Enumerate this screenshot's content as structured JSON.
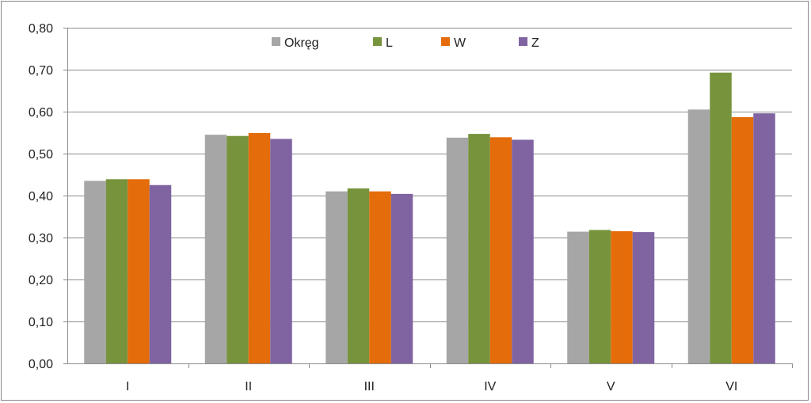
{
  "chart_data": {
    "type": "bar",
    "title": "",
    "xlabel": "",
    "ylabel": "",
    "categories": [
      "I",
      "II",
      "III",
      "IV",
      "V",
      "VI"
    ],
    "ylim": [
      0,
      0.8
    ],
    "yticks": [
      0.0,
      0.1,
      0.2,
      0.3,
      0.4,
      0.5,
      0.6,
      0.7,
      0.8
    ],
    "ytick_labels": [
      "0,00",
      "0,10",
      "0,20",
      "0,30",
      "0,40",
      "0,50",
      "0,60",
      "0,70",
      "0,80"
    ],
    "grid": true,
    "legend_position": "top",
    "series": [
      {
        "name": "Okręg",
        "color": "#a6a6a6",
        "values": [
          0.435,
          0.545,
          0.41,
          0.538,
          0.314,
          0.605
        ]
      },
      {
        "name": "L",
        "color": "#77933c",
        "values": [
          0.439,
          0.542,
          0.417,
          0.547,
          0.318,
          0.693
        ]
      },
      {
        "name": "W",
        "color": "#e46c0a",
        "values": [
          0.439,
          0.549,
          0.41,
          0.539,
          0.315,
          0.587
        ]
      },
      {
        "name": "Z",
        "color": "#8064a2",
        "values": [
          0.425,
          0.535,
          0.404,
          0.533,
          0.313,
          0.596
        ]
      }
    ]
  }
}
